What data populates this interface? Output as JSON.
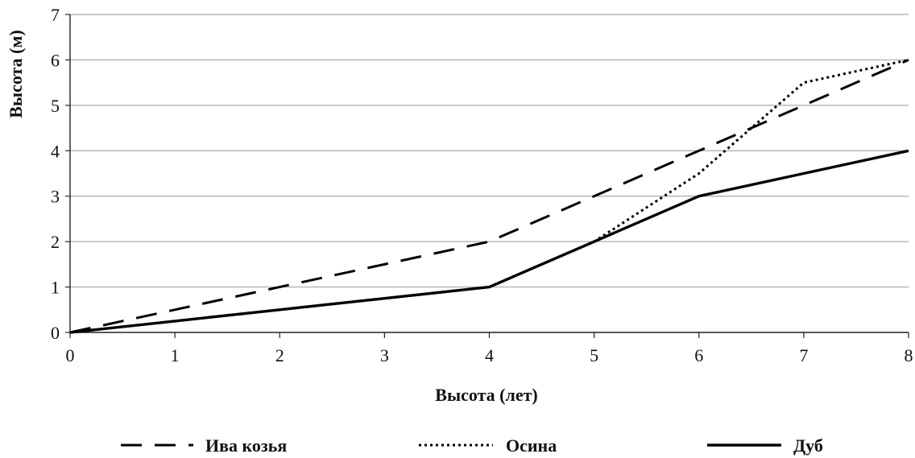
{
  "chart_data": {
    "type": "line",
    "xlabel": "Высота (лет)",
    "ylabel": "Высота (м)",
    "x": [
      0,
      1,
      2,
      3,
      4,
      5,
      6,
      7,
      8
    ],
    "x_ticks": [
      "0",
      "1",
      "2",
      "3",
      "4",
      "5",
      "6",
      "7",
      "8"
    ],
    "y_ticks": [
      "0",
      "1",
      "2",
      "3",
      "4",
      "5",
      "6",
      "7"
    ],
    "xlim": [
      0,
      8
    ],
    "ylim": [
      0,
      7
    ],
    "grid": "horizontal",
    "legend_position": "bottom",
    "series": [
      {
        "name": "Ива козья",
        "style": "dashed",
        "color": "#000000",
        "values": [
          0,
          0.5,
          1,
          1.5,
          2,
          3,
          4,
          5,
          6
        ]
      },
      {
        "name": "Осина",
        "style": "dotted",
        "color": "#000000",
        "values": [
          0,
          0.25,
          0.5,
          0.75,
          1,
          2,
          3.5,
          5.5,
          6
        ]
      },
      {
        "name": "Дуб",
        "style": "solid",
        "color": "#000000",
        "values": [
          0,
          0.25,
          0.5,
          0.75,
          1,
          2,
          3,
          3.5,
          4
        ]
      }
    ]
  }
}
